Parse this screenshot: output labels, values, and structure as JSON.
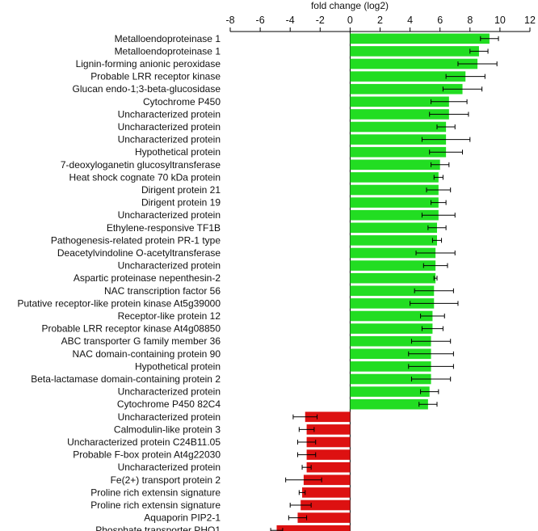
{
  "chart_data": {
    "type": "bar",
    "orientation": "horizontal",
    "title": "",
    "xlabel": "fold change (log2)",
    "ylabel": "",
    "xlim": [
      -8,
      12
    ],
    "xticks": [
      -8,
      -6,
      -4,
      -2,
      0,
      2,
      4,
      6,
      8,
      10,
      12
    ],
    "axis_position": "top",
    "grid": false,
    "colors": {
      "up": "#22dd22",
      "down": "#dd1111",
      "axis": "#000000"
    },
    "categories": [
      "Metalloendoproteinase 1",
      "Metalloendoproteinase 1",
      "Lignin-forming anionic peroxidase",
      "Probable LRR receptor kinase",
      "Glucan endo-1;3-beta-glucosidase",
      "Cytochrome P450",
      "Uncharacterized protein",
      "Uncharacterized protein",
      "Uncharacterized protein",
      "Hypothetical protein",
      "7-deoxyloganetin glucosyltransferase",
      "Heat shock cognate 70 kDa protein",
      "Dirigent protein 21",
      "Dirigent protein 19",
      "Uncharacterized protein",
      "Ethylene-responsive TF1B",
      "Pathogenesis-related protein PR-1 type",
      "Deacetylvindoline O-acetyltransferase",
      "Uncharacterized protein",
      "Aspartic proteinase nepenthesin-2",
      "NAC transcription factor 56",
      "Putative receptor-like protein kinase At5g39000",
      "Receptor-like protein 12",
      "Probable LRR receptor kinase At4g08850",
      "ABC transporter G family member 36",
      "NAC domain-containing protein 90",
      "Hypothetical protein",
      "Beta-lactamase domain-containing protein 2",
      "Uncharacterized protein",
      "Cytochrome P450 82C4",
      "Uncharacterized protein",
      "Calmodulin-like protein 3",
      "Uncharacterized protein C24B11.05",
      "Probable F-box protein At4g22030",
      "Uncharacterized protein",
      "Fe(2+) transport protein 2",
      "Proline rich extensin signature",
      "Proline rich extensin signature",
      "Aquaporin PIP2-1",
      "Phosphate transporter PHO1"
    ],
    "values": [
      9.3,
      8.6,
      8.5,
      7.7,
      7.5,
      6.6,
      6.6,
      6.4,
      6.4,
      6.4,
      6.0,
      5.9,
      5.9,
      5.9,
      5.9,
      5.8,
      5.8,
      5.7,
      5.7,
      5.7,
      5.6,
      5.6,
      5.5,
      5.5,
      5.4,
      5.4,
      5.4,
      5.4,
      5.3,
      5.2,
      -3.0,
      -2.9,
      -2.9,
      -2.9,
      -2.9,
      -3.1,
      -3.2,
      -3.3,
      -3.5,
      -4.9
    ],
    "errors": [
      0.6,
      0.6,
      1.3,
      1.3,
      1.3,
      1.2,
      1.3,
      0.6,
      1.6,
      1.1,
      0.6,
      0.3,
      0.8,
      0.5,
      1.1,
      0.6,
      0.3,
      1.3,
      0.8,
      0.1,
      1.3,
      1.6,
      0.8,
      0.7,
      1.3,
      1.5,
      1.5,
      1.3,
      0.6,
      0.6,
      0.8,
      0.5,
      0.6,
      0.6,
      0.3,
      1.2,
      0.2,
      0.7,
      0.6,
      0.4
    ]
  }
}
